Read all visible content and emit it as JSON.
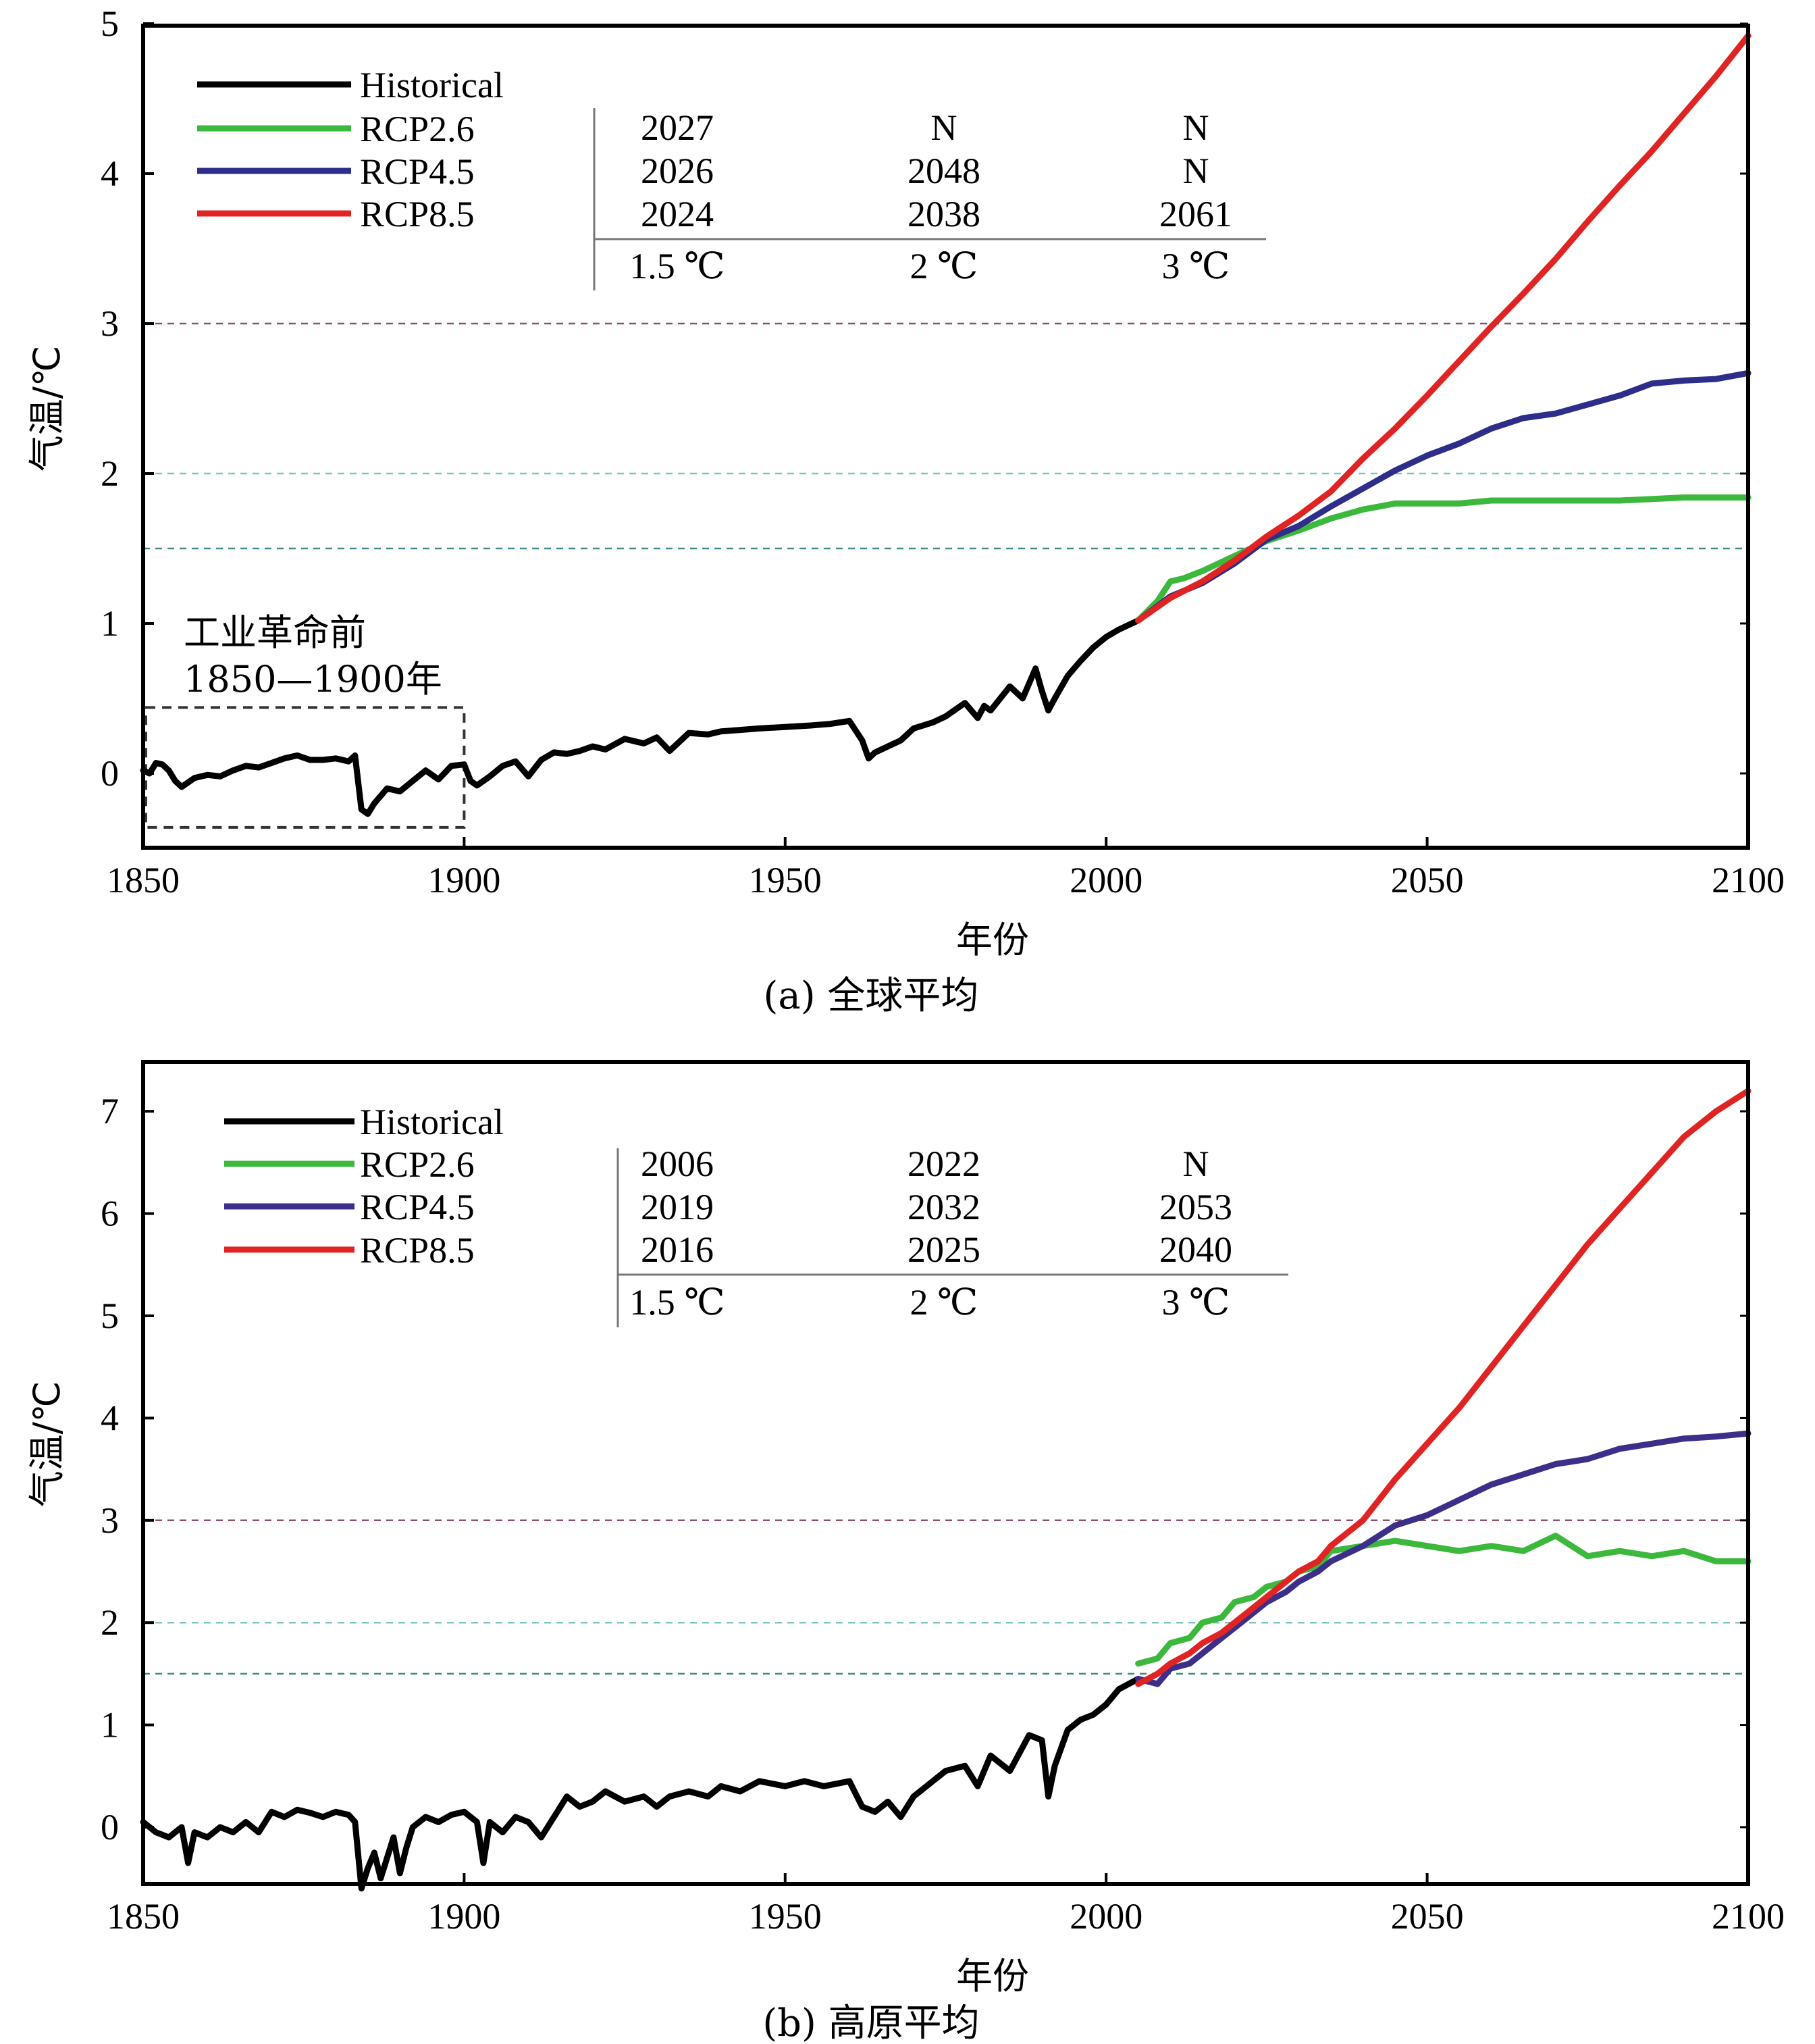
{
  "chart_data": [
    {
      "type": "line",
      "caption": "(a) 全球平均",
      "xlabel": "年份",
      "ylabel": "气温/℃",
      "xlim": [
        1850,
        2100
      ],
      "ylim": [
        -0.47,
        5
      ],
      "xticks": [
        "1850",
        "1900",
        "1950",
        "2000",
        "2050",
        "2100"
      ],
      "yticks": [
        "0",
        "1",
        "2",
        "3",
        "4",
        "5"
      ],
      "threshold_lines": [
        1.5,
        2,
        3
      ],
      "annotation": {
        "line1": "工业革命前",
        "line2": "1850—1900年",
        "box_x": [
          1850,
          1900
        ],
        "box_y": [
          -0.36,
          0.44
        ]
      },
      "legend": [
        "Historical",
        "RCP2.6",
        "RCP4.5",
        "RCP8.5"
      ],
      "table": {
        "rows": [
          [
            "2027",
            "N",
            "N"
          ],
          [
            "2026",
            "2048",
            "N"
          ],
          [
            "2024",
            "2038",
            "2061"
          ]
        ],
        "header": [
          "1.5 ℃",
          "2 ℃",
          "3 ℃"
        ]
      },
      "series": [
        {
          "name": "Historical",
          "color": "#000000",
          "x": [
            1850,
            1851,
            1852,
            1853,
            1854,
            1855,
            1856,
            1858,
            1860,
            1862,
            1864,
            1866,
            1868,
            1870,
            1872,
            1874,
            1876,
            1878,
            1880,
            1882,
            1883,
            1884,
            1885,
            1886,
            1888,
            1890,
            1892,
            1894,
            1896,
            1898,
            1900,
            1901,
            1902,
            1904,
            1906,
            1908,
            1910,
            1912,
            1914,
            1916,
            1918,
            1920,
            1922,
            1925,
            1928,
            1930,
            1932,
            1935,
            1938,
            1940,
            1943,
            1946,
            1950,
            1954,
            1957,
            1960,
            1962,
            1963,
            1964,
            1965,
            1968,
            1970,
            1973,
            1975,
            1978,
            1980,
            1981,
            1982,
            1985,
            1987,
            1989,
            1990,
            1991,
            1992,
            1994,
            1996,
            1998,
            2000,
            2002,
            2005
          ],
          "y": [
            0.02,
            0.0,
            0.07,
            0.06,
            0.02,
            -0.05,
            -0.09,
            -0.03,
            -0.01,
            -0.02,
            0.02,
            0.05,
            0.04,
            0.07,
            0.1,
            0.12,
            0.09,
            0.09,
            0.1,
            0.08,
            0.12,
            -0.24,
            -0.27,
            -0.2,
            -0.1,
            -0.12,
            -0.05,
            0.02,
            -0.04,
            0.05,
            0.06,
            -0.05,
            -0.08,
            -0.02,
            0.05,
            0.08,
            -0.02,
            0.09,
            0.14,
            0.13,
            0.15,
            0.18,
            0.16,
            0.23,
            0.2,
            0.24,
            0.15,
            0.27,
            0.26,
            0.28,
            0.29,
            0.3,
            0.31,
            0.32,
            0.33,
            0.35,
            0.22,
            0.1,
            0.14,
            0.16,
            0.22,
            0.3,
            0.34,
            0.38,
            0.47,
            0.37,
            0.45,
            0.42,
            0.58,
            0.5,
            0.7,
            0.55,
            0.42,
            0.5,
            0.65,
            0.75,
            0.84,
            0.91,
            0.96,
            1.02
          ]
        },
        {
          "name": "RCP2.6",
          "color": "#3cb83c",
          "x": [
            2005,
            2008,
            2010,
            2012,
            2015,
            2020,
            2025,
            2030,
            2035,
            2040,
            2045,
            2050,
            2055,
            2060,
            2070,
            2080,
            2090,
            2100
          ],
          "y": [
            1.02,
            1.15,
            1.28,
            1.3,
            1.35,
            1.45,
            1.55,
            1.62,
            1.7,
            1.76,
            1.8,
            1.8,
            1.8,
            1.82,
            1.82,
            1.82,
            1.84,
            1.84
          ]
        },
        {
          "name": "RCP4.5",
          "color": "#2d2d8a",
          "x": [
            2005,
            2010,
            2015,
            2020,
            2025,
            2030,
            2035,
            2040,
            2045,
            2050,
            2055,
            2060,
            2065,
            2070,
            2075,
            2080,
            2085,
            2090,
            2095,
            2100
          ],
          "y": [
            1.02,
            1.18,
            1.27,
            1.4,
            1.56,
            1.65,
            1.78,
            1.9,
            2.02,
            2.12,
            2.2,
            2.3,
            2.37,
            2.4,
            2.46,
            2.52,
            2.6,
            2.62,
            2.63,
            2.67
          ]
        },
        {
          "name": "RCP8.5",
          "color": "#e02424",
          "x": [
            2005,
            2010,
            2015,
            2020,
            2025,
            2030,
            2035,
            2040,
            2045,
            2050,
            2055,
            2060,
            2065,
            2070,
            2075,
            2080,
            2085,
            2090,
            2095,
            2100
          ],
          "y": [
            1.02,
            1.17,
            1.28,
            1.42,
            1.58,
            1.72,
            1.88,
            2.1,
            2.3,
            2.52,
            2.75,
            2.98,
            3.2,
            3.43,
            3.68,
            3.92,
            4.15,
            4.4,
            4.65,
            4.92
          ]
        }
      ]
    },
    {
      "type": "line",
      "caption": "(b) 高原平均",
      "xlabel": "年份",
      "ylabel": "气温/℃",
      "xlim": [
        1850,
        2100
      ],
      "ylim": [
        -0.5,
        7.5
      ],
      "xticks": [
        "1850",
        "1900",
        "1950",
        "2000",
        "2050",
        "2100"
      ],
      "yticks": [
        "0",
        "1",
        "2",
        "3",
        "4",
        "5",
        "6",
        "7"
      ],
      "threshold_lines": [
        1.5,
        2,
        3
      ],
      "legend": [
        "Historical",
        "RCP2.6",
        "RCP4.5",
        "RCP8.5"
      ],
      "table": {
        "rows": [
          [
            "2006",
            "2022",
            "N"
          ],
          [
            "2019",
            "2032",
            "2053"
          ],
          [
            "2016",
            "2025",
            "2040"
          ]
        ],
        "header": [
          "1.5 ℃",
          "2 ℃",
          "3 ℃"
        ]
      },
      "series": [
        {
          "name": "Historical",
          "color": "#000000",
          "x": [
            1850,
            1852,
            1854,
            1856,
            1857,
            1858,
            1860,
            1862,
            1864,
            1866,
            1868,
            1870,
            1872,
            1874,
            1876,
            1878,
            1880,
            1882,
            1883,
            1884,
            1885,
            1886,
            1887,
            1888,
            1889,
            1890,
            1891,
            1892,
            1894,
            1896,
            1898,
            1900,
            1902,
            1903,
            1904,
            1906,
            1908,
            1910,
            1912,
            1914,
            1916,
            1918,
            1920,
            1922,
            1925,
            1928,
            1930,
            1932,
            1935,
            1938,
            1940,
            1943,
            1946,
            1950,
            1953,
            1956,
            1960,
            1962,
            1964,
            1966,
            1968,
            1970,
            1973,
            1975,
            1978,
            1980,
            1982,
            1985,
            1988,
            1990,
            1991,
            1992,
            1994,
            1996,
            1998,
            2000,
            2002,
            2005
          ],
          "y": [
            0.05,
            -0.05,
            -0.1,
            0.0,
            -0.35,
            -0.05,
            -0.1,
            0.0,
            -0.05,
            0.05,
            -0.05,
            0.15,
            0.1,
            0.17,
            0.14,
            0.1,
            0.15,
            0.12,
            0.05,
            -0.6,
            -0.4,
            -0.25,
            -0.5,
            -0.3,
            -0.1,
            -0.45,
            -0.2,
            0.0,
            0.1,
            0.05,
            0.12,
            0.15,
            0.05,
            -0.35,
            0.05,
            -0.05,
            0.1,
            0.05,
            -0.1,
            0.1,
            0.3,
            0.2,
            0.25,
            0.35,
            0.25,
            0.3,
            0.2,
            0.3,
            0.35,
            0.3,
            0.4,
            0.35,
            0.45,
            0.4,
            0.45,
            0.4,
            0.45,
            0.2,
            0.15,
            0.25,
            0.1,
            0.3,
            0.45,
            0.55,
            0.6,
            0.4,
            0.7,
            0.55,
            0.9,
            0.85,
            0.3,
            0.6,
            0.95,
            1.05,
            1.1,
            1.2,
            1.35,
            1.45
          ]
        },
        {
          "name": "RCP2.6",
          "color": "#3cb83c",
          "x": [
            2005,
            2008,
            2010,
            2013,
            2015,
            2018,
            2020,
            2023,
            2025,
            2028,
            2030,
            2033,
            2035,
            2040,
            2045,
            2050,
            2055,
            2060,
            2065,
            2070,
            2075,
            2080,
            2085,
            2090,
            2095,
            2100
          ],
          "y": [
            1.6,
            1.65,
            1.8,
            1.85,
            2.0,
            2.05,
            2.2,
            2.25,
            2.35,
            2.4,
            2.5,
            2.55,
            2.7,
            2.75,
            2.8,
            2.75,
            2.7,
            2.75,
            2.7,
            2.85,
            2.65,
            2.7,
            2.65,
            2.7,
            2.6,
            2.6
          ]
        },
        {
          "name": "RCP4.5",
          "color": "#3c2f8a",
          "x": [
            2005,
            2008,
            2010,
            2013,
            2015,
            2018,
            2020,
            2023,
            2025,
            2028,
            2030,
            2033,
            2035,
            2040,
            2045,
            2050,
            2055,
            2060,
            2065,
            2070,
            2075,
            2080,
            2085,
            2090,
            2095,
            2100
          ],
          "y": [
            1.45,
            1.4,
            1.55,
            1.6,
            1.7,
            1.85,
            1.95,
            2.1,
            2.2,
            2.3,
            2.4,
            2.5,
            2.6,
            2.75,
            2.95,
            3.05,
            3.2,
            3.35,
            3.45,
            3.55,
            3.6,
            3.7,
            3.75,
            3.8,
            3.82,
            3.85
          ]
        },
        {
          "name": "RCP8.5",
          "color": "#e02424",
          "x": [
            2005,
            2008,
            2010,
            2013,
            2015,
            2018,
            2020,
            2023,
            2025,
            2028,
            2030,
            2033,
            2035,
            2040,
            2045,
            2050,
            2055,
            2060,
            2065,
            2070,
            2075,
            2080,
            2085,
            2090,
            2095,
            2100
          ],
          "y": [
            1.4,
            1.5,
            1.6,
            1.7,
            1.8,
            1.9,
            2.0,
            2.15,
            2.25,
            2.4,
            2.5,
            2.6,
            2.75,
            3.0,
            3.4,
            3.75,
            4.1,
            4.5,
            4.9,
            5.3,
            5.7,
            6.05,
            6.4,
            6.75,
            7.0,
            7.2
          ]
        }
      ]
    }
  ]
}
